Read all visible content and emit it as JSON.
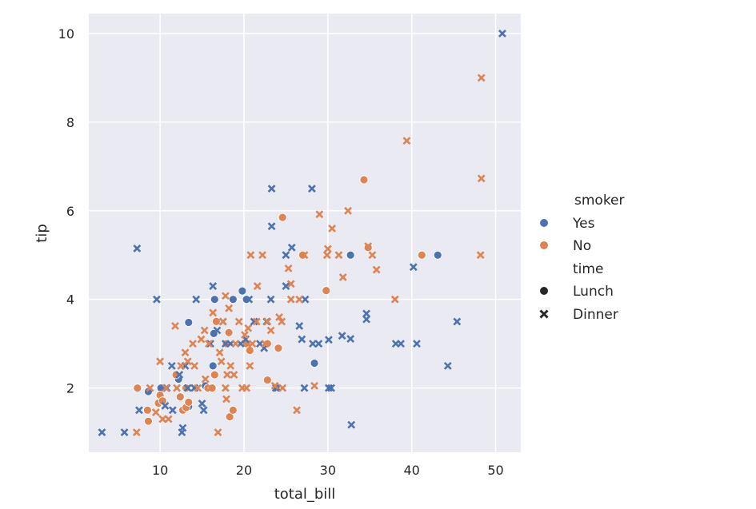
{
  "chart_data": {
    "type": "scatter",
    "xlabel": "total_bill",
    "ylabel": "tip",
    "xlim": [
      1.5,
      53.0
    ],
    "ylim": [
      0.55,
      10.45
    ],
    "x_ticks": [
      10,
      20,
      30,
      40,
      50
    ],
    "y_ticks": [
      2,
      4,
      6,
      8,
      10
    ],
    "grid": true,
    "background": "#eaeaf2",
    "legend": {
      "placement": "right",
      "hue_title": "smoker",
      "hue_entries": [
        {
          "label": "Yes",
          "color": "#4c72b0"
        },
        {
          "label": "No",
          "color": "#dd8452"
        }
      ],
      "style_title": "time",
      "style_entries": [
        {
          "label": "Lunch",
          "marker": "circle"
        },
        {
          "label": "Dinner",
          "marker": "x"
        }
      ]
    },
    "series": [
      {
        "name": "Yes, Lunch",
        "hue": "Yes",
        "marker": "circle",
        "color": "#4c72b0",
        "points": [
          [
            8.6,
            1.92
          ],
          [
            10.1,
            2.0
          ],
          [
            12.2,
            2.2
          ],
          [
            13.0,
            2.0
          ],
          [
            13.4,
            3.48
          ],
          [
            13.4,
            1.58
          ],
          [
            15.4,
            2.05
          ],
          [
            16.3,
            2.5
          ],
          [
            16.4,
            3.23
          ],
          [
            16.5,
            4.0
          ],
          [
            18.7,
            4.0
          ],
          [
            19.8,
            4.19
          ],
          [
            20.3,
            4.0
          ],
          [
            28.4,
            2.56
          ],
          [
            32.7,
            5.0
          ],
          [
            43.1,
            5.0
          ]
        ]
      },
      {
        "name": "No, Lunch",
        "hue": "No",
        "marker": "circle",
        "color": "#dd8452",
        "points": [
          [
            7.3,
            2.0
          ],
          [
            8.5,
            1.5
          ],
          [
            8.6,
            1.25
          ],
          [
            9.8,
            1.66
          ],
          [
            10.0,
            1.84
          ],
          [
            10.3,
            1.71
          ],
          [
            11.9,
            2.3
          ],
          [
            12.4,
            1.8
          ],
          [
            12.7,
            1.5
          ],
          [
            13.1,
            1.56
          ],
          [
            13.1,
            2.0
          ],
          [
            13.4,
            1.68
          ],
          [
            15.7,
            2.0
          ],
          [
            16.2,
            2.0
          ],
          [
            16.5,
            2.3
          ],
          [
            16.7,
            3.5
          ],
          [
            17.9,
            3.0
          ],
          [
            18.2,
            3.25
          ],
          [
            18.3,
            1.35
          ],
          [
            18.7,
            1.5
          ],
          [
            20.3,
            3.0
          ],
          [
            20.7,
            2.85
          ],
          [
            22.8,
            3.0
          ],
          [
            22.8,
            2.18
          ],
          [
            24.1,
            2.9
          ],
          [
            24.6,
            5.85
          ],
          [
            27.0,
            5.0
          ],
          [
            29.8,
            4.2
          ],
          [
            34.3,
            6.7
          ],
          [
            34.8,
            5.17
          ],
          [
            41.2,
            5.0
          ]
        ]
      },
      {
        "name": "Yes, Dinner",
        "hue": "Yes",
        "marker": "x",
        "color": "#4c72b0",
        "points": [
          [
            3.07,
            1.0
          ],
          [
            5.75,
            1.0
          ],
          [
            7.25,
            5.15
          ],
          [
            7.5,
            1.5
          ],
          [
            9.6,
            4.0
          ],
          [
            10.6,
            1.6
          ],
          [
            10.8,
            2.0
          ],
          [
            11.4,
            2.5
          ],
          [
            11.5,
            1.5
          ],
          [
            12.3,
            2.3
          ],
          [
            12.6,
            1.0
          ],
          [
            12.7,
            1.1
          ],
          [
            13.0,
            2.5
          ],
          [
            13.3,
            2.0
          ],
          [
            14.1,
            2.0
          ],
          [
            14.3,
            4.0
          ],
          [
            15.0,
            1.65
          ],
          [
            15.2,
            1.5
          ],
          [
            16.0,
            3.0
          ],
          [
            16.3,
            4.3
          ],
          [
            16.8,
            3.3
          ],
          [
            17.5,
            3.5
          ],
          [
            17.8,
            3.0
          ],
          [
            18.4,
            3.0
          ],
          [
            19.6,
            3.0
          ],
          [
            20.2,
            3.1
          ],
          [
            20.6,
            4.0
          ],
          [
            21.2,
            3.5
          ],
          [
            21.9,
            3.0
          ],
          [
            22.4,
            2.9
          ],
          [
            22.7,
            3.5
          ],
          [
            23.2,
            4.0
          ],
          [
            23.3,
            6.5
          ],
          [
            23.3,
            5.65
          ],
          [
            23.8,
            2.0
          ],
          [
            24.0,
            2.0
          ],
          [
            25.0,
            5.0
          ],
          [
            25.0,
            4.3
          ],
          [
            25.7,
            5.17
          ],
          [
            26.6,
            3.4
          ],
          [
            26.9,
            3.1
          ],
          [
            27.2,
            2.0
          ],
          [
            27.3,
            4.0
          ],
          [
            28.1,
            6.5
          ],
          [
            28.2,
            3.0
          ],
          [
            28.9,
            3.0
          ],
          [
            30.1,
            2.0
          ],
          [
            30.4,
            2.0
          ],
          [
            30.1,
            3.09
          ],
          [
            31.7,
            3.18
          ],
          [
            32.7,
            3.11
          ],
          [
            32.8,
            1.17
          ],
          [
            34.6,
            3.55
          ],
          [
            34.6,
            3.68
          ],
          [
            38.1,
            3.0
          ],
          [
            38.7,
            3.0
          ],
          [
            40.2,
            4.73
          ],
          [
            40.6,
            3.0
          ],
          [
            44.3,
            2.5
          ],
          [
            45.4,
            3.5
          ],
          [
            50.8,
            10.0
          ]
        ]
      },
      {
        "name": "No, Dinner",
        "hue": "No",
        "marker": "x",
        "color": "#dd8452",
        "points": [
          [
            7.2,
            1.0
          ],
          [
            8.8,
            2.0
          ],
          [
            9.5,
            1.45
          ],
          [
            10.0,
            2.6
          ],
          [
            10.3,
            1.3
          ],
          [
            10.7,
            2.0
          ],
          [
            11.0,
            1.3
          ],
          [
            11.8,
            3.4
          ],
          [
            12.0,
            2.0
          ],
          [
            12.5,
            2.5
          ],
          [
            13.0,
            2.8
          ],
          [
            13.3,
            2.6
          ],
          [
            13.9,
            3.0
          ],
          [
            14.1,
            2.5
          ],
          [
            14.5,
            2.0
          ],
          [
            14.9,
            3.1
          ],
          [
            15.3,
            3.3
          ],
          [
            15.4,
            2.2
          ],
          [
            15.8,
            3.0
          ],
          [
            16.0,
            2.0
          ],
          [
            16.3,
            3.7
          ],
          [
            16.9,
            1.0
          ],
          [
            17.1,
            2.8
          ],
          [
            17.3,
            2.6
          ],
          [
            17.5,
            3.5
          ],
          [
            17.8,
            4.08
          ],
          [
            17.8,
            2.0
          ],
          [
            17.9,
            1.75
          ],
          [
            18.0,
            2.3
          ],
          [
            18.2,
            3.8
          ],
          [
            18.4,
            2.5
          ],
          [
            18.8,
            2.3
          ],
          [
            19.0,
            3.0
          ],
          [
            19.4,
            3.5
          ],
          [
            19.8,
            2.0
          ],
          [
            20.1,
            3.2
          ],
          [
            20.3,
            2.0
          ],
          [
            20.5,
            3.35
          ],
          [
            20.7,
            2.5
          ],
          [
            20.8,
            5.0
          ],
          [
            21.0,
            3.0
          ],
          [
            21.5,
            3.5
          ],
          [
            21.6,
            4.3
          ],
          [
            22.2,
            5.0
          ],
          [
            22.5,
            3.0
          ],
          [
            22.8,
            3.5
          ],
          [
            23.2,
            3.3
          ],
          [
            23.7,
            2.05
          ],
          [
            24.2,
            3.6
          ],
          [
            24.5,
            3.5
          ],
          [
            24.6,
            2.0
          ],
          [
            25.3,
            4.7
          ],
          [
            25.6,
            4.0
          ],
          [
            25.6,
            4.35
          ],
          [
            26.3,
            1.5
          ],
          [
            26.6,
            4.0
          ],
          [
            27.2,
            5.0
          ],
          [
            28.4,
            2.05
          ],
          [
            29.0,
            5.92
          ],
          [
            29.9,
            5.0
          ],
          [
            30.0,
            5.14
          ],
          [
            30.5,
            5.6
          ],
          [
            31.3,
            5.0
          ],
          [
            31.8,
            4.5
          ],
          [
            32.4,
            6.0
          ],
          [
            34.8,
            5.2
          ],
          [
            35.3,
            5.0
          ],
          [
            35.8,
            4.67
          ],
          [
            38.0,
            4.0
          ],
          [
            39.4,
            7.58
          ],
          [
            48.2,
            5.0
          ],
          [
            48.3,
            6.73
          ],
          [
            48.3,
            9.0
          ]
        ]
      }
    ]
  }
}
